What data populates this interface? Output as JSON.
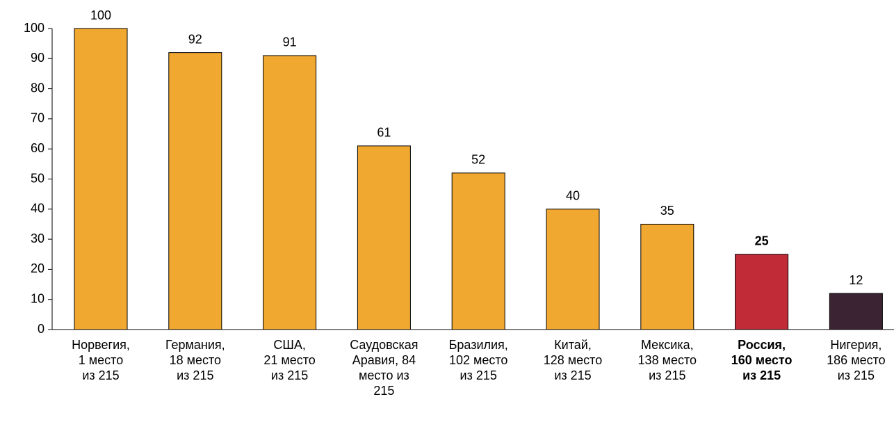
{
  "chart_data": {
    "type": "bar",
    "categories": [
      [
        "Норвегия,",
        "1 место",
        "из 215"
      ],
      [
        "Германия,",
        "18 место",
        "из 215"
      ],
      [
        "США,",
        "21 место",
        "из 215"
      ],
      [
        "Саудовская",
        "Аравия, 84",
        "место из",
        "215"
      ],
      [
        "Бразилия,",
        "102 место",
        "из 215"
      ],
      [
        "Китай,",
        "128 место",
        "из 215"
      ],
      [
        "Мексика,",
        "138 место",
        "из 215"
      ],
      [
        "Россия,",
        "160 место",
        "из 215"
      ],
      [
        "Нигерия,",
        "186 место",
        "из 215"
      ]
    ],
    "values": [
      100,
      92,
      91,
      61,
      52,
      40,
      35,
      25,
      12
    ],
    "colors": [
      "#f0a830",
      "#f0a830",
      "#f0a830",
      "#f0a830",
      "#f0a830",
      "#f0a830",
      "#f0a830",
      "#c12a37",
      "#3c2333"
    ],
    "label_weight": [
      "normal",
      "normal",
      "normal",
      "normal",
      "normal",
      "normal",
      "normal",
      "bold",
      "normal"
    ],
    "ylim": [
      0,
      100
    ],
    "yticks": [
      0,
      10,
      20,
      30,
      40,
      50,
      60,
      70,
      80,
      90,
      100
    ],
    "grid": false
  }
}
